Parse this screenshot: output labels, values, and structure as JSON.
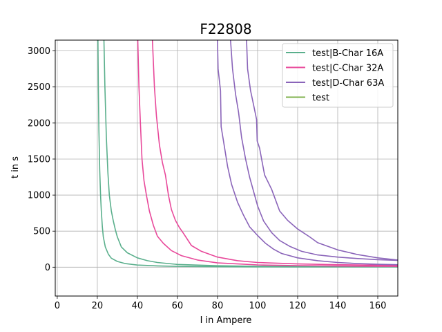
{
  "chart_data": {
    "type": "line",
    "title": "F22808",
    "xlabel": "I in Ampere",
    "ylabel": "t in s",
    "xlim": [
      -1,
      170
    ],
    "ylim": [
      -400,
      3150
    ],
    "xticks": [
      0,
      20,
      40,
      60,
      80,
      100,
      120,
      140,
      160
    ],
    "yticks": [
      0,
      500,
      1000,
      1500,
      2000,
      2500,
      3000
    ],
    "grid": true,
    "legend_position": "top-right",
    "series": [
      {
        "name": "test|B-Char 16A",
        "color": "#5aaf8c",
        "curves": [
          [
            [
              20.3,
              3150
            ],
            [
              20.5,
              2500
            ],
            [
              20.8,
              1900
            ],
            [
              21.2,
              1350
            ],
            [
              21.6,
              1000
            ],
            [
              22.0,
              780
            ],
            [
              22.5,
              560
            ],
            [
              23.0,
              420
            ],
            [
              24.0,
              280
            ],
            [
              25.5,
              180
            ],
            [
              27.0,
              125
            ],
            [
              30.0,
              80
            ],
            [
              34.0,
              50
            ],
            [
              40.0,
              30
            ],
            [
              50.0,
              18
            ],
            [
              60.0,
              12
            ],
            [
              80.0,
              7
            ],
            [
              100.0,
              5
            ],
            [
              120.0,
              4
            ],
            [
              140.0,
              3
            ],
            [
              170.0,
              3
            ]
          ],
          [
            [
              23.3,
              3150
            ],
            [
              23.8,
              2500
            ],
            [
              24.5,
              1800
            ],
            [
              25.3,
              1300
            ],
            [
              26.0,
              1000
            ],
            [
              27.0,
              780
            ],
            [
              28.0,
              640
            ],
            [
              29.0,
              520
            ],
            [
              30.0,
              420
            ],
            [
              32.0,
              280
            ],
            [
              35.0,
              200
            ],
            [
              40.0,
              130
            ],
            [
              45.0,
              90
            ],
            [
              50.0,
              65
            ],
            [
              60.0,
              38
            ],
            [
              80.0,
              20
            ],
            [
              100.0,
              13
            ],
            [
              120.0,
              10
            ],
            [
              140.0,
              9
            ],
            [
              170.0,
              7
            ]
          ]
        ]
      },
      {
        "name": "test|C-Char 32A",
        "color": "#e8489a",
        "curves": [
          [
            [
              40.2,
              3150
            ],
            [
              40.8,
              2500
            ],
            [
              41.5,
              2000
            ],
            [
              42.3,
              1500
            ],
            [
              43.3,
              1200
            ],
            [
              44.5,
              1000
            ],
            [
              46.0,
              780
            ],
            [
              48.0,
              580
            ],
            [
              50.0,
              430
            ],
            [
              53.0,
              330
            ],
            [
              57.0,
              230
            ],
            [
              62.0,
              160
            ],
            [
              70.0,
              100
            ],
            [
              80.0,
              60
            ],
            [
              100.0,
              32
            ],
            [
              120.0,
              22
            ],
            [
              140.0,
              16
            ],
            [
              170.0,
              12
            ]
          ],
          [
            [
              47.5,
              3150
            ],
            [
              48.5,
              2500
            ],
            [
              49.5,
              2100
            ],
            [
              51.0,
              1700
            ],
            [
              52.5,
              1450
            ],
            [
              54.0,
              1280
            ],
            [
              55.5,
              1000
            ],
            [
              57.0,
              800
            ],
            [
              59.0,
              650
            ],
            [
              61.0,
              550
            ],
            [
              63.0,
              470
            ],
            [
              67.0,
              300
            ],
            [
              72.0,
              220
            ],
            [
              80.0,
              140
            ],
            [
              90.0,
              90
            ],
            [
              100.0,
              65
            ],
            [
              120.0,
              45
            ],
            [
              140.0,
              35
            ],
            [
              170.0,
              25
            ]
          ]
        ]
      },
      {
        "name": "test|D-Char 63A",
        "color": "#8a64b9",
        "curves": [
          [
            [
              80.0,
              3150
            ],
            [
              80.3,
              2750
            ],
            [
              81.5,
              2450
            ],
            [
              81.8,
              1950
            ],
            [
              83.0,
              1750
            ],
            [
              85.0,
              1400
            ],
            [
              87.0,
              1150
            ],
            [
              90.0,
              900
            ],
            [
              93.0,
              720
            ],
            [
              96.0,
              560
            ],
            [
              100.0,
              440
            ],
            [
              104.0,
              330
            ],
            [
              108.0,
              250
            ],
            [
              112.0,
              190
            ],
            [
              120.0,
              130
            ],
            [
              130.0,
              90
            ],
            [
              140.0,
              65
            ],
            [
              150.0,
              50
            ],
            [
              160.0,
              40
            ],
            [
              170.0,
              35
            ]
          ],
          [
            [
              86.5,
              3150
            ],
            [
              87.5,
              2750
            ],
            [
              89.0,
              2400
            ],
            [
              90.5,
              2150
            ],
            [
              92.0,
              1800
            ],
            [
              94.0,
              1500
            ],
            [
              96.0,
              1250
            ],
            [
              98.0,
              1050
            ],
            [
              100.0,
              850
            ],
            [
              103.0,
              640
            ],
            [
              107.0,
              480
            ],
            [
              111.0,
              370
            ],
            [
              116.0,
              290
            ],
            [
              122.0,
              220
            ],
            [
              130.0,
              170
            ],
            [
              140.0,
              140
            ],
            [
              150.0,
              120
            ],
            [
              160.0,
              105
            ],
            [
              170.0,
              95
            ]
          ],
          [
            [
              94.5,
              3150
            ],
            [
              95.0,
              2750
            ],
            [
              96.5,
              2450
            ],
            [
              98.0,
              2250
            ],
            [
              99.5,
              2050
            ],
            [
              99.8,
              1750
            ],
            [
              101.0,
              1650
            ],
            [
              102.0,
              1500
            ],
            [
              103.5,
              1280
            ],
            [
              107.0,
              1080
            ],
            [
              111.0,
              780
            ],
            [
              115.0,
              650
            ],
            [
              120.0,
              530
            ],
            [
              126.0,
              420
            ],
            [
              130.0,
              340
            ],
            [
              140.0,
              240
            ],
            [
              150.0,
              175
            ],
            [
              160.0,
              130
            ],
            [
              170.0,
              100
            ]
          ]
        ]
      },
      {
        "name": "test",
        "color": "#7fb24e",
        "curves": []
      }
    ]
  }
}
